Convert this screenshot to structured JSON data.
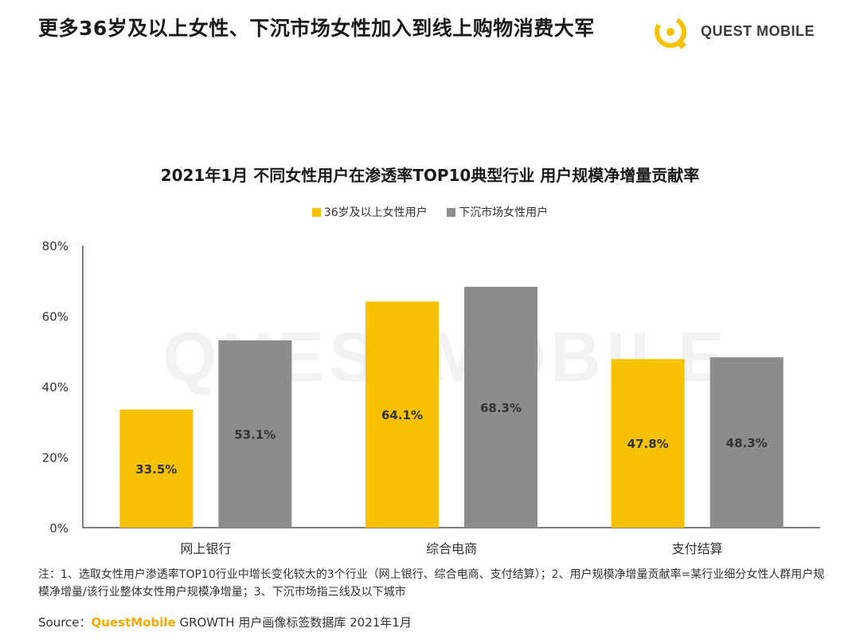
{
  "headline": "更多36岁及以上女性、下沉市场女性加入到线上购物消费大军",
  "logo": {
    "text": "QUEST MOBILE"
  },
  "watermark": {
    "text": "QUESTMOBILE"
  },
  "colors": {
    "series1": "#F5C100",
    "series2": "#8C8C8C",
    "axis": "#555555",
    "watermark": "#F2F2F2"
  },
  "chart_data": {
    "type": "bar",
    "title": "2021年1月 不同女性用户在渗透率TOP10典型行业 用户规模净增量贡献率",
    "categories": [
      "网上银行",
      "综合电商",
      "支付结算"
    ],
    "series": [
      {
        "name": "36岁及以上女性用户",
        "values": [
          33.5,
          64.1,
          47.8
        ],
        "labels": [
          "33.5%",
          "64.1%",
          "47.8%"
        ]
      },
      {
        "name": "下沉市场女性用户",
        "values": [
          53.1,
          68.3,
          48.3
        ],
        "labels": [
          "53.1%",
          "68.3%",
          "48.3%"
        ]
      }
    ],
    "ylim": [
      0,
      80
    ],
    "yticks": [
      0,
      20,
      40,
      60,
      80
    ],
    "ytick_labels": [
      "0%",
      "20%",
      "40%",
      "60%",
      "80%"
    ],
    "legend_position": "top-center",
    "grid": false
  },
  "notes": "注：1、选取女性用户渗透率TOP10行业中增长变化较大的3个行业（网上银行、综合电商、支付结算）；2、用户规模净增量贡献率=某行业细分女性人群用户规模净增量/该行业整体女性用户规模净增量；3、下沉市场指三线及以下城市",
  "source": {
    "label": "Source：",
    "brand": "QuestMobile",
    "rest": " GROWTH 用户画像标签数据库 2021年1月"
  }
}
